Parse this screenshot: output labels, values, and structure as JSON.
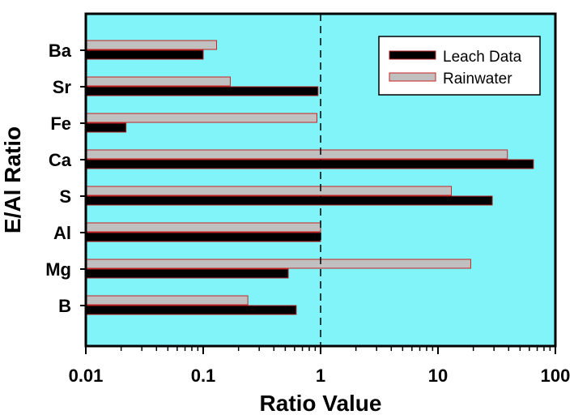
{
  "chart_data": {
    "type": "bar",
    "orientation": "horizontal",
    "xscale": "log",
    "xlim": [
      0.01,
      100
    ],
    "xticks": [
      "0.01",
      "0.1",
      "1",
      "10",
      "100"
    ],
    "xlabel": "Ratio Value",
    "ylabel": "E/Al Ratio",
    "categories": [
      "Ba",
      "Sr",
      "Fe",
      "Ca",
      "S",
      "Al",
      "Mg",
      "B"
    ],
    "series": [
      {
        "name": "Leach Data",
        "color": "#000000",
        "edge_color": "#b22222",
        "values": [
          0.1,
          0.95,
          0.022,
          65,
          29,
          1.0,
          0.53,
          0.62
        ]
      },
      {
        "name": "Rainwater",
        "color": "#c0c0c0",
        "edge_color": "#cc2222",
        "values": [
          0.13,
          0.17,
          0.93,
          39,
          13,
          1.0,
          19,
          0.24
        ]
      }
    ],
    "reference_line": {
      "x": 1,
      "style": "dashed"
    },
    "background_color": "#80f4f8",
    "grid": false,
    "legend_position": "top-right"
  }
}
